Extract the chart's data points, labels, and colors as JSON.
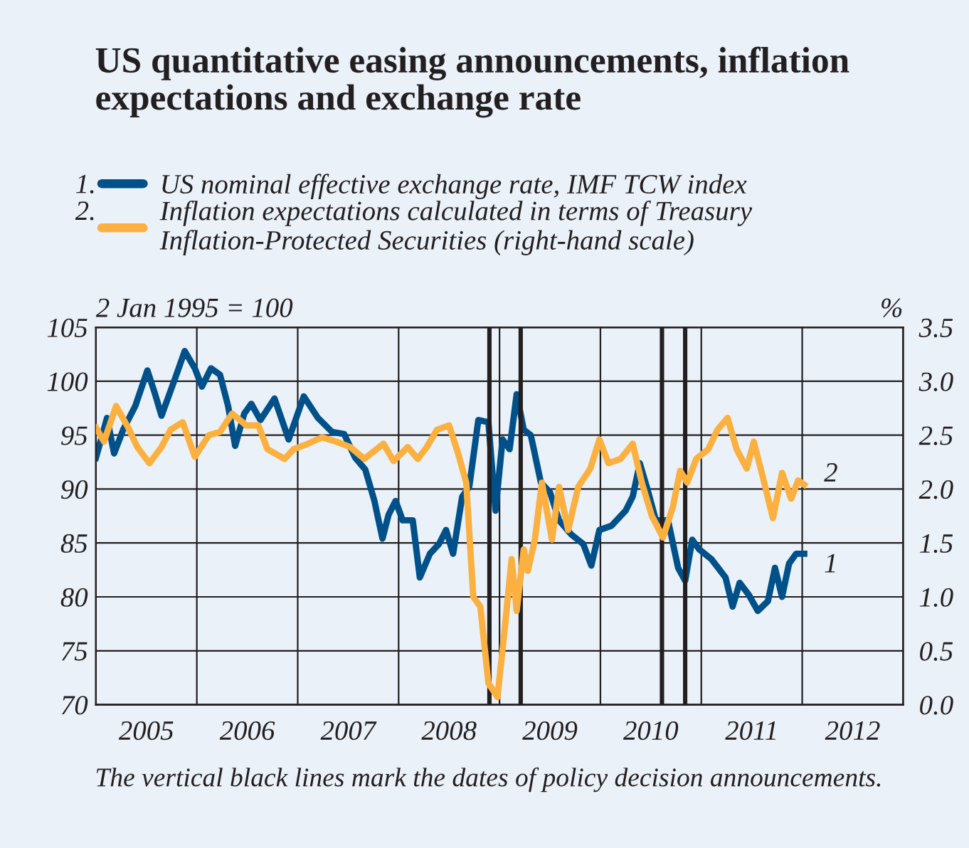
{
  "chart_data": {
    "type": "line",
    "title": "US quantitative easing announcements, inflation\nexpectations and exchange rate",
    "ylabel": "2 Jan 1995 = 100",
    "y2label": "%",
    "xlim": [
      2005,
      2013
    ],
    "xticks": [
      {
        "value": 2005.5,
        "label": "2005"
      },
      {
        "value": 2006,
        "label": null
      },
      {
        "value": 2006.5,
        "label": "2006"
      },
      {
        "value": 2007,
        "label": null
      },
      {
        "value": 2007.5,
        "label": "2007"
      },
      {
        "value": 2008,
        "label": null
      },
      {
        "value": 2008.5,
        "label": "2008"
      },
      {
        "value": 2009,
        "label": null
      },
      {
        "value": 2009.5,
        "label": "2009"
      },
      {
        "value": 2010,
        "label": null
      },
      {
        "value": 2010.5,
        "label": "2010"
      },
      {
        "value": 2011,
        "label": null
      },
      {
        "value": 2011.5,
        "label": "2011"
      },
      {
        "value": 2012,
        "label": null
      },
      {
        "value": 2012.5,
        "label": "2012"
      }
    ],
    "ylim": [
      70,
      105
    ],
    "yticks": [
      70,
      75,
      80,
      85,
      90,
      95,
      100,
      105
    ],
    "y2lim": [
      0,
      3.5
    ],
    "y2ticks": [
      {
        "value": 0,
        "label": "0.0"
      },
      0.5,
      {
        "value": 1,
        "label": "1.0"
      },
      1.5,
      {
        "value": 2,
        "label": "2.0"
      },
      2.5,
      {
        "value": 3,
        "label": "3.0"
      },
      3.5
    ],
    "grid": true,
    "legend": "top",
    "line_style": "solid",
    "marker": "none",
    "series": [
      {
        "name": "US nominal effective exchange rate, IMF TCW index",
        "color": "#00508a",
        "x": [
          2005.0,
          2005.11,
          2005.18,
          2005.27,
          2005.39,
          2005.51,
          2005.58,
          2005.65,
          2005.79,
          2005.88,
          2005.98,
          2006.05,
          2006.14,
          2006.23,
          2006.31,
          2006.38,
          2006.47,
          2006.54,
          2006.63,
          2006.77,
          2006.91,
          2007.06,
          2007.2,
          2007.34,
          2007.46,
          2007.57,
          2007.67,
          2007.76,
          2007.84,
          2007.9,
          2007.97,
          2008.04,
          2008.14,
          2008.21,
          2008.31,
          2008.4,
          2008.47,
          2008.54,
          2008.63,
          2008.7,
          2008.79,
          2008.89,
          2008.96,
          2009.03,
          2009.1,
          2009.17,
          2009.24,
          2009.31,
          2009.41,
          2009.5,
          2009.59,
          2009.71,
          2009.83,
          2009.91,
          2009.99,
          2010.11,
          2010.25,
          2010.32,
          2010.39,
          2010.46,
          2010.55,
          2010.67,
          2010.77,
          2010.84,
          2010.91,
          2010.98,
          2011.1,
          2011.24,
          2011.31,
          2011.38,
          2011.47,
          2011.56,
          2011.66,
          2011.73,
          2011.8,
          2011.87,
          2011.94,
          2012.02
        ],
        "values": [
          92.9,
          96.6,
          93.3,
          95.5,
          97.7,
          101,
          99,
          96.8,
          100.4,
          102.8,
          101.2,
          99.5,
          101.2,
          100.6,
          97.7,
          94,
          97,
          97.9,
          96.4,
          98.4,
          94.6,
          98.6,
          96.6,
          95.3,
          95.1,
          92.9,
          91.8,
          88.9,
          85.4,
          87.6,
          88.9,
          87.1,
          87.1,
          81.8,
          84,
          84.9,
          86.2,
          84,
          89.3,
          90.2,
          96.4,
          96.2,
          88,
          94.6,
          93.7,
          98.8,
          95.5,
          95,
          90.6,
          89.7,
          87.1,
          85.8,
          84.9,
          82.9,
          86.2,
          86.6,
          88,
          89.3,
          92.4,
          90.2,
          87.1,
          87.1,
          82.7,
          81.5,
          85.3,
          84.4,
          83.5,
          81.8,
          79.1,
          81.3,
          80.2,
          78.7,
          79.6,
          82.7,
          80,
          83.1,
          84,
          84
        ]
      },
      {
        "name": "Inflation expectations calculated in terms of Treasury\nInflation-Protected Securities (right-hand scale)",
        "color": "#fbb040",
        "axis": "y2",
        "x": [
          2005.0,
          2005.08,
          2005.2,
          2005.32,
          2005.41,
          2005.53,
          2005.65,
          2005.74,
          2005.86,
          2005.98,
          2006.12,
          2006.23,
          2006.35,
          2006.49,
          2006.61,
          2006.7,
          2006.87,
          2006.96,
          2007.1,
          2007.24,
          2007.38,
          2007.52,
          2007.66,
          2007.85,
          2007.95,
          2008.09,
          2008.19,
          2008.28,
          2008.38,
          2008.5,
          2008.59,
          2008.67,
          2008.74,
          2008.81,
          2008.89,
          2008.98,
          2009.05,
          2009.12,
          2009.17,
          2009.24,
          2009.28,
          2009.35,
          2009.42,
          2009.52,
          2009.59,
          2009.68,
          2009.78,
          2009.9,
          2009.99,
          2010.08,
          2010.2,
          2010.32,
          2010.41,
          2010.51,
          2010.62,
          2010.72,
          2010.79,
          2010.86,
          2010.95,
          2011.07,
          2011.16,
          2011.26,
          2011.35,
          2011.45,
          2011.52,
          2011.61,
          2011.71,
          2011.8,
          2011.89,
          2011.96,
          2012.02
        ],
        "values": [
          2.57,
          2.44,
          2.77,
          2.57,
          2.39,
          2.24,
          2.39,
          2.55,
          2.62,
          2.3,
          2.5,
          2.53,
          2.7,
          2.59,
          2.59,
          2.37,
          2.28,
          2.37,
          2.42,
          2.48,
          2.44,
          2.39,
          2.28,
          2.42,
          2.26,
          2.39,
          2.28,
          2.39,
          2.55,
          2.59,
          2.33,
          2.06,
          1.0,
          0.91,
          0.2,
          0.07,
          0.69,
          1.35,
          0.87,
          1.44,
          1.24,
          1.53,
          2.06,
          1.53,
          2.02,
          1.62,
          2.02,
          2.19,
          2.46,
          2.24,
          2.28,
          2.42,
          2.06,
          1.75,
          1.55,
          1.84,
          2.17,
          2.06,
          2.28,
          2.37,
          2.55,
          2.66,
          2.37,
          2.19,
          2.44,
          2.11,
          1.73,
          2.15,
          1.91,
          2.08,
          2.04
        ]
      }
    ],
    "ref_lines": [
      {
        "axis": "x",
        "value": 2008.9,
        "color": "#231f20"
      },
      {
        "axis": "x",
        "value": 2009.21,
        "color": "#231f20"
      },
      {
        "axis": "x",
        "value": 2010.61,
        "color": "#231f20"
      },
      {
        "axis": "x",
        "value": 2010.84,
        "color": "#231f20"
      }
    ],
    "annotations": [
      "1.",
      "2.",
      "1",
      "2",
      "The vertical black lines mark the dates of policy decision announcements."
    ]
  }
}
